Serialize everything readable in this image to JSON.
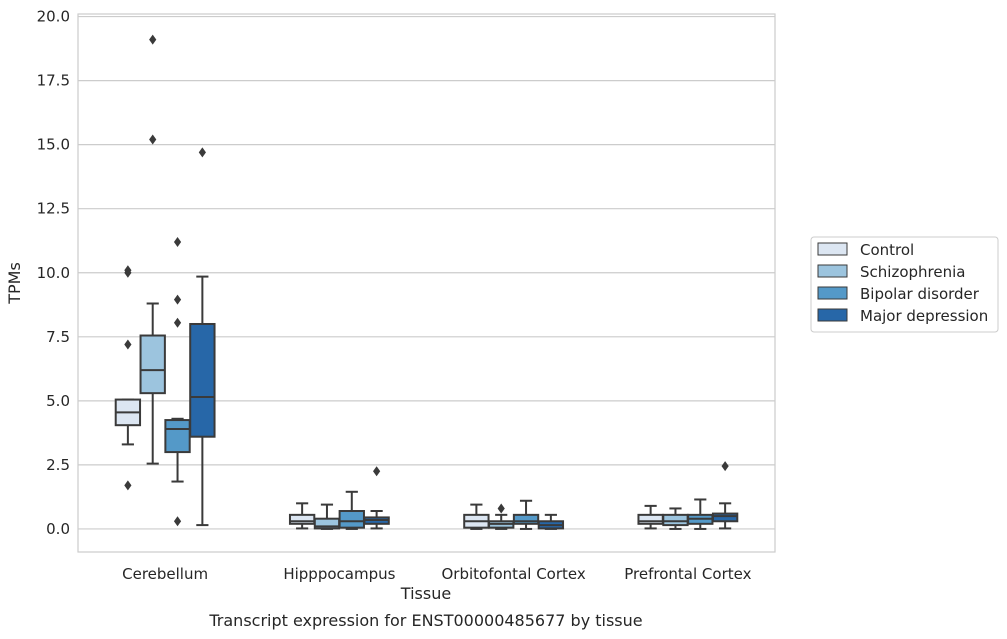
{
  "chart_data": {
    "type": "box",
    "xlabel": "Tissue",
    "ylabel": "TPMs",
    "caption": "Transcript expression for ENST00000485677 by tissue",
    "ylim": [
      -0.9,
      20.1
    ],
    "yticks": [
      0.0,
      2.5,
      5.0,
      7.5,
      10.0,
      12.5,
      15.0,
      17.5,
      20.0
    ],
    "ytick_labels": [
      "0.0",
      "2.5",
      "5.0",
      "7.5",
      "10.0",
      "12.5",
      "15.0",
      "17.5",
      "20.0"
    ],
    "grid": "horizontal",
    "legend_position": "right",
    "categories": [
      "Cerebellum",
      "Hipppocampus",
      "Orbitofontal Cortex",
      "Prefrontal Cortex"
    ],
    "series": [
      {
        "name": "Control",
        "color": "#dce6f2",
        "boxes": [
          {
            "whislo": 3.3,
            "q1": 4.05,
            "med": 4.55,
            "q3": 5.05,
            "whishi": 5.05,
            "fliers": [
              1.7,
              7.2,
              10.0,
              10.1
            ]
          },
          {
            "whislo": 0.02,
            "q1": 0.2,
            "med": 0.3,
            "q3": 0.55,
            "whishi": 1.0,
            "fliers": []
          },
          {
            "whislo": 0.0,
            "q1": 0.05,
            "med": 0.3,
            "q3": 0.55,
            "whishi": 0.95,
            "fliers": []
          },
          {
            "whislo": 0.02,
            "q1": 0.2,
            "med": 0.3,
            "q3": 0.55,
            "whishi": 0.9,
            "fliers": []
          }
        ]
      },
      {
        "name": "Schizophrenia",
        "color": "#9cc4de",
        "boxes": [
          {
            "whislo": 2.55,
            "q1": 5.3,
            "med": 6.2,
            "q3": 7.55,
            "whishi": 8.8,
            "fliers": [
              15.2,
              19.1
            ]
          },
          {
            "whislo": 0.0,
            "q1": 0.02,
            "med": 0.1,
            "q3": 0.4,
            "whishi": 0.95,
            "fliers": []
          },
          {
            "whislo": 0.0,
            "q1": 0.05,
            "med": 0.2,
            "q3": 0.3,
            "whishi": 0.55,
            "fliers": [
              0.8
            ]
          },
          {
            "whislo": 0.0,
            "q1": 0.15,
            "med": 0.3,
            "q3": 0.55,
            "whishi": 0.8,
            "fliers": []
          }
        ]
      },
      {
        "name": "Bipolar disorder",
        "color": "#5499c8",
        "boxes": [
          {
            "whislo": 1.85,
            "q1": 3.0,
            "med": 3.9,
            "q3": 4.25,
            "whishi": 4.3,
            "fliers": [
              0.3,
              8.05,
              8.95,
              11.2
            ]
          },
          {
            "whislo": 0.0,
            "q1": 0.05,
            "med": 0.3,
            "q3": 0.7,
            "whishi": 1.45,
            "fliers": []
          },
          {
            "whislo": 0.0,
            "q1": 0.2,
            "med": 0.3,
            "q3": 0.55,
            "whishi": 1.1,
            "fliers": []
          },
          {
            "whislo": 0.0,
            "q1": 0.2,
            "med": 0.4,
            "q3": 0.55,
            "whishi": 1.15,
            "fliers": []
          }
        ]
      },
      {
        "name": "Major depression",
        "color": "#2767a8",
        "boxes": [
          {
            "whislo": 0.15,
            "q1": 3.6,
            "med": 5.15,
            "q3": 8.0,
            "whishi": 9.85,
            "fliers": [
              14.7
            ]
          },
          {
            "whislo": 0.02,
            "q1": 0.2,
            "med": 0.35,
            "q3": 0.45,
            "whishi": 0.7,
            "fliers": [
              2.25
            ]
          },
          {
            "whislo": 0.0,
            "q1": 0.02,
            "med": 0.15,
            "q3": 0.3,
            "whishi": 0.55,
            "fliers": []
          },
          {
            "whislo": 0.02,
            "q1": 0.3,
            "med": 0.5,
            "q3": 0.6,
            "whishi": 1.0,
            "fliers": [
              2.45
            ]
          }
        ]
      }
    ]
  }
}
